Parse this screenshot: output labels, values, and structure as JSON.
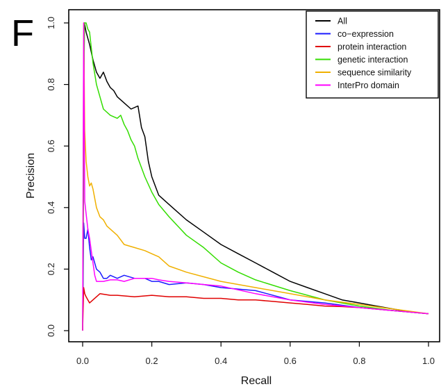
{
  "panel_label": "F",
  "chart_data": {
    "type": "line",
    "title": "",
    "xlabel": "Recall",
    "ylabel": "Precision",
    "xlim": [
      0,
      1
    ],
    "ylim": [
      0,
      1
    ],
    "x_ticks": [
      0.0,
      0.2,
      0.4,
      0.6,
      0.8,
      1.0
    ],
    "x_tick_labels": [
      "0.0",
      "0.2",
      "0.4",
      "0.6",
      "0.8",
      "1.0"
    ],
    "y_ticks": [
      0.0,
      0.2,
      0.4,
      0.6,
      0.8,
      1.0
    ],
    "y_tick_labels": [
      "0.0",
      "0.2",
      "0.4",
      "0.6",
      "0.8",
      "1.0"
    ],
    "grid": false,
    "legend_position": "top-right",
    "series": [
      {
        "name": "All",
        "color": "#000000",
        "x": [
          0.0,
          0.005,
          0.01,
          0.015,
          0.02,
          0.03,
          0.04,
          0.05,
          0.06,
          0.07,
          0.08,
          0.09,
          0.1,
          0.12,
          0.14,
          0.16,
          0.17,
          0.18,
          0.19,
          0.2,
          0.22,
          0.25,
          0.3,
          0.35,
          0.4,
          0.45,
          0.5,
          0.55,
          0.6,
          0.65,
          0.7,
          0.75,
          0.8,
          0.85,
          0.9,
          0.95,
          1.0
        ],
        "y": [
          0.0,
          1.0,
          0.97,
          0.95,
          0.93,
          0.88,
          0.84,
          0.82,
          0.84,
          0.81,
          0.79,
          0.78,
          0.76,
          0.74,
          0.72,
          0.73,
          0.66,
          0.63,
          0.55,
          0.5,
          0.44,
          0.41,
          0.36,
          0.32,
          0.28,
          0.25,
          0.22,
          0.19,
          0.16,
          0.14,
          0.12,
          0.1,
          0.09,
          0.08,
          0.07,
          0.06,
          0.055
        ]
      },
      {
        "name": "co−expression",
        "color": "#1a1aff",
        "x": [
          0.0,
          0.003,
          0.006,
          0.01,
          0.015,
          0.02,
          0.025,
          0.03,
          0.04,
          0.05,
          0.06,
          0.07,
          0.08,
          0.1,
          0.12,
          0.15,
          0.18,
          0.2,
          0.22,
          0.25,
          0.3,
          0.35,
          0.4,
          0.5,
          0.6,
          0.7,
          0.8,
          0.9,
          1.0
        ],
        "y": [
          0.0,
          0.35,
          0.3,
          0.3,
          0.33,
          0.27,
          0.23,
          0.24,
          0.2,
          0.19,
          0.17,
          0.17,
          0.18,
          0.17,
          0.18,
          0.17,
          0.17,
          0.16,
          0.16,
          0.15,
          0.155,
          0.15,
          0.14,
          0.13,
          0.1,
          0.09,
          0.075,
          0.065,
          0.055
        ]
      },
      {
        "name": "protein interaction",
        "color": "#e00000",
        "x": [
          0.0,
          0.003,
          0.006,
          0.01,
          0.015,
          0.02,
          0.03,
          0.05,
          0.08,
          0.1,
          0.15,
          0.2,
          0.25,
          0.3,
          0.35,
          0.4,
          0.45,
          0.5,
          0.55,
          0.6,
          0.65,
          0.7,
          0.75,
          0.8,
          0.85,
          0.9,
          0.95,
          1.0
        ],
        "y": [
          0.0,
          0.14,
          0.12,
          0.11,
          0.1,
          0.09,
          0.1,
          0.12,
          0.115,
          0.115,
          0.11,
          0.115,
          0.11,
          0.11,
          0.105,
          0.105,
          0.1,
          0.1,
          0.095,
          0.09,
          0.085,
          0.08,
          0.078,
          0.075,
          0.07,
          0.065,
          0.06,
          0.055
        ]
      },
      {
        "name": "genetic interaction",
        "color": "#33dd00",
        "x": [
          0.0,
          0.005,
          0.01,
          0.015,
          0.02,
          0.025,
          0.03,
          0.04,
          0.05,
          0.06,
          0.08,
          0.1,
          0.11,
          0.12,
          0.13,
          0.14,
          0.15,
          0.16,
          0.18,
          0.2,
          0.22,
          0.25,
          0.3,
          0.35,
          0.4,
          0.45,
          0.5,
          0.6,
          0.7,
          0.8,
          0.9,
          1.0
        ],
        "y": [
          0.0,
          1.0,
          1.0,
          0.98,
          0.97,
          0.92,
          0.87,
          0.8,
          0.76,
          0.72,
          0.7,
          0.69,
          0.7,
          0.67,
          0.65,
          0.62,
          0.6,
          0.56,
          0.5,
          0.45,
          0.41,
          0.37,
          0.31,
          0.27,
          0.22,
          0.19,
          0.165,
          0.13,
          0.1,
          0.08,
          0.065,
          0.055
        ]
      },
      {
        "name": "sequence similarity",
        "color": "#f0b000",
        "x": [
          0.0,
          0.003,
          0.006,
          0.01,
          0.015,
          0.02,
          0.025,
          0.03,
          0.04,
          0.05,
          0.06,
          0.07,
          0.08,
          0.1,
          0.12,
          0.15,
          0.18,
          0.2,
          0.22,
          0.25,
          0.3,
          0.35,
          0.4,
          0.5,
          0.6,
          0.7,
          0.8,
          0.9,
          1.0
        ],
        "y": [
          0.0,
          1.0,
          0.65,
          0.55,
          0.5,
          0.47,
          0.48,
          0.46,
          0.4,
          0.37,
          0.36,
          0.34,
          0.33,
          0.31,
          0.28,
          0.27,
          0.26,
          0.25,
          0.24,
          0.21,
          0.19,
          0.175,
          0.16,
          0.14,
          0.12,
          0.1,
          0.085,
          0.07,
          0.055
        ]
      },
      {
        "name": "InterPro domain",
        "color": "#ff00ff",
        "x": [
          0.0,
          0.003,
          0.006,
          0.01,
          0.015,
          0.02,
          0.025,
          0.03,
          0.035,
          0.04,
          0.05,
          0.06,
          0.08,
          0.1,
          0.12,
          0.15,
          0.18,
          0.2,
          0.22,
          0.25,
          0.3,
          0.35,
          0.4,
          0.5,
          0.6,
          0.7,
          0.8,
          0.9,
          1.0
        ],
        "y": [
          0.0,
          1.0,
          0.42,
          0.38,
          0.33,
          0.3,
          0.26,
          0.22,
          0.18,
          0.16,
          0.16,
          0.16,
          0.165,
          0.165,
          0.16,
          0.17,
          0.17,
          0.17,
          0.165,
          0.16,
          0.155,
          0.15,
          0.145,
          0.12,
          0.1,
          0.085,
          0.075,
          0.065,
          0.055
        ]
      }
    ]
  }
}
